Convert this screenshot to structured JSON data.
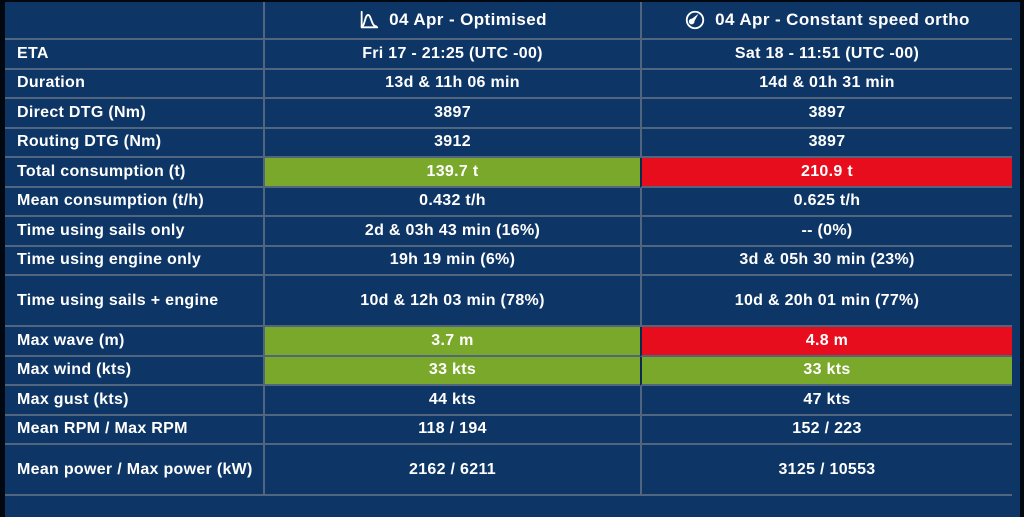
{
  "header": {
    "optimised": {
      "icon": "curve-icon",
      "label": "04 Apr - Optimised"
    },
    "constant": {
      "icon": "gauge-icon",
      "label": "04 Apr - Constant speed ortho"
    }
  },
  "rows": [
    {
      "label": "ETA",
      "optimised": "Fri 17 - 21:25 (UTC -00)",
      "constant": "Sat 18 - 11:51 (UTC -00)",
      "opt_state": "none",
      "const_state": "none",
      "tall": false
    },
    {
      "label": "Duration",
      "optimised": "13d & 11h 06 min",
      "constant": "14d & 01h 31 min",
      "opt_state": "none",
      "const_state": "none",
      "tall": false
    },
    {
      "label": "Direct DTG (Nm)",
      "optimised": "3897",
      "constant": "3897",
      "opt_state": "none",
      "const_state": "none",
      "tall": false
    },
    {
      "label": "Routing DTG (Nm)",
      "optimised": "3912",
      "constant": "3897",
      "opt_state": "none",
      "const_state": "none",
      "tall": false
    },
    {
      "label": "Total consumption (t)",
      "optimised": "139.7 t",
      "constant": "210.9 t",
      "opt_state": "good",
      "const_state": "bad",
      "tall": false
    },
    {
      "label": "Mean consumption (t/h)",
      "optimised": "0.432 t/h",
      "constant": "0.625 t/h",
      "opt_state": "none",
      "const_state": "none",
      "tall": false
    },
    {
      "label": "Time using sails only",
      "optimised": "2d & 03h 43 min (16%)",
      "constant": "-- (0%)",
      "opt_state": "none",
      "const_state": "none",
      "tall": false
    },
    {
      "label": "Time using engine only",
      "optimised": "19h 19 min (6%)",
      "constant": "3d & 05h 30 min (23%)",
      "opt_state": "none",
      "const_state": "none",
      "tall": false
    },
    {
      "label": "Time using sails + engine",
      "optimised": "10d & 12h 03 min (78%)",
      "constant": "10d & 20h 01 min (77%)",
      "opt_state": "none",
      "const_state": "none",
      "tall": true
    },
    {
      "label": "Max wave (m)",
      "optimised": "3.7 m",
      "constant": "4.8 m",
      "opt_state": "good",
      "const_state": "bad",
      "tall": false
    },
    {
      "label": "Max wind (kts)",
      "optimised": "33 kts",
      "constant": "33 kts",
      "opt_state": "good",
      "const_state": "good",
      "tall": false
    },
    {
      "label": "Max gust (kts)",
      "optimised": "44 kts",
      "constant": "47 kts",
      "opt_state": "none",
      "const_state": "none",
      "tall": false
    },
    {
      "label": "Mean RPM / Max RPM",
      "optimised": "118 / 194",
      "constant": "152 / 223",
      "opt_state": "none",
      "const_state": "none",
      "tall": false
    },
    {
      "label": "Mean power / Max power (kW)",
      "optimised": "2162 / 6211",
      "constant": "3125 / 10553",
      "opt_state": "none",
      "const_state": "none",
      "tall": true
    }
  ],
  "colors": {
    "background": "#0d3565",
    "grid_line": "#52657f",
    "highlight_good": "#7aa82b",
    "highlight_bad": "#e80d1d",
    "text": "#ffffff"
  }
}
